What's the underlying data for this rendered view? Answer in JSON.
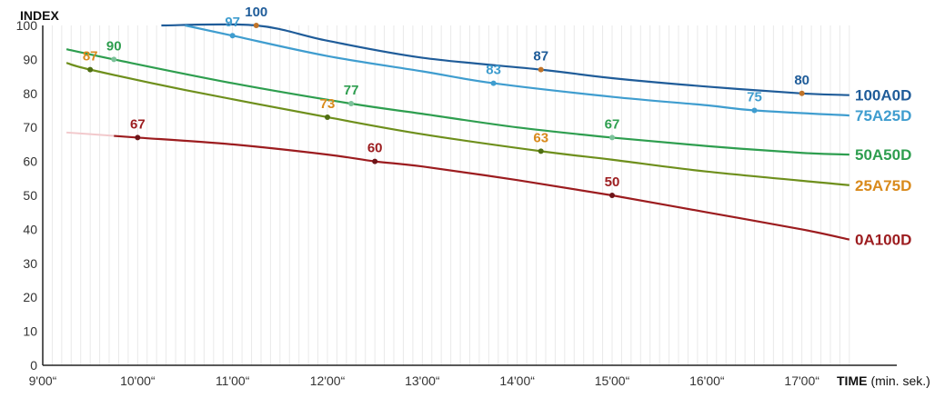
{
  "chart_data": {
    "type": "line",
    "ylabel": "INDEX",
    "xlabel": "TIME",
    "xlabel_unit": "(min. sek.)",
    "xlim": [
      9.0,
      17.5
    ],
    "ylim": [
      0,
      100
    ],
    "x_ticks": [
      9,
      10,
      11,
      12,
      13,
      14,
      15,
      16,
      17
    ],
    "x_tick_labels": [
      "9'00“",
      "10'00“",
      "11'00“",
      "12'00“",
      "13'00“",
      "14'00“",
      "15'00“",
      "16'00“",
      "17'00“"
    ],
    "y_ticks": [
      0,
      10,
      20,
      30,
      40,
      50,
      60,
      70,
      80,
      90,
      100
    ],
    "grid": "vertical",
    "legend": "labels at right end of each line",
    "series": [
      {
        "name": "100A0D",
        "color": "#1f5c99",
        "marker_color": "#c0742a",
        "x": [
          10.25,
          11.25,
          12.0,
          13.0,
          14.25,
          15.0,
          16.0,
          17.0,
          17.5
        ],
        "y": [
          100.0,
          100.0,
          95.5,
          90.5,
          87.0,
          84.5,
          82.0,
          80.0,
          79.5
        ],
        "points": [
          {
            "x": 11.25,
            "y": 100,
            "label": "100"
          },
          {
            "x": 14.25,
            "y": 87,
            "label": "87"
          },
          {
            "x": 17.0,
            "y": 80,
            "label": "80"
          }
        ]
      },
      {
        "name": "75A25D",
        "color": "#3f9dcf",
        "marker_color": "#3f9dcf",
        "x": [
          10.5,
          11.0,
          12.0,
          13.0,
          13.75,
          15.0,
          16.0,
          16.5,
          17.5
        ],
        "y": [
          100.0,
          97.0,
          91.0,
          86.5,
          83.0,
          79.0,
          76.5,
          75.0,
          73.5
        ],
        "points": [
          {
            "x": 11.0,
            "y": 97,
            "label": "97"
          },
          {
            "x": 13.75,
            "y": 83,
            "label": "83"
          },
          {
            "x": 16.5,
            "y": 75,
            "label": "75"
          }
        ]
      },
      {
        "name": "50A50D",
        "color": "#2e9e4f",
        "marker_color": "#7cc29a",
        "x": [
          9.25,
          9.75,
          11.0,
          12.25,
          13.0,
          14.0,
          15.0,
          16.0,
          17.0,
          17.5
        ],
        "y": [
          93.0,
          90.0,
          83.0,
          77.0,
          74.0,
          70.0,
          67.0,
          64.5,
          62.5,
          62.0
        ],
        "points": [
          {
            "x": 9.75,
            "y": 90,
            "label": "90"
          },
          {
            "x": 12.25,
            "y": 77,
            "label": "77"
          },
          {
            "x": 15.0,
            "y": 67,
            "label": "67"
          }
        ]
      },
      {
        "name": "25A75D",
        "color": "#6e8f1c",
        "marker_color": "#4f6e12",
        "x": [
          9.25,
          9.5,
          10.5,
          12.0,
          13.0,
          14.25,
          15.0,
          16.0,
          17.5
        ],
        "y": [
          89.0,
          87.0,
          81.0,
          73.0,
          68.0,
          63.0,
          60.5,
          57.0,
          53.0
        ],
        "points": [
          {
            "x": 9.5,
            "y": 87,
            "label": "87"
          },
          {
            "x": 12.0,
            "y": 73,
            "label": "73"
          },
          {
            "x": 14.25,
            "y": 63,
            "label": "63"
          }
        ]
      },
      {
        "name": "0A100D",
        "color": "#9c1c1f",
        "marker_color": "#6e1418",
        "faded_x": [
          9.25,
          9.75
        ],
        "faded_y": [
          68.5,
          67.5
        ],
        "x": [
          9.75,
          10.0,
          11.0,
          12.0,
          12.5,
          13.0,
          14.0,
          15.0,
          16.0,
          17.0,
          17.5
        ],
        "y": [
          67.5,
          67.0,
          65.0,
          62.0,
          60.0,
          58.5,
          54.5,
          50.0,
          45.0,
          40.0,
          37.0
        ],
        "points": [
          {
            "x": 10.0,
            "y": 67,
            "label": "67"
          },
          {
            "x": 12.5,
            "y": 60,
            "label": "60"
          },
          {
            "x": 15.0,
            "y": 50,
            "label": "50"
          }
        ]
      }
    ],
    "label_colors": {
      "100A0D": "#1f5c99",
      "75A25D": "#3f9dcf",
      "50A50D": "#2e9e4f",
      "25A75D": "#d98a1c",
      "0A100D": "#9c1c1f"
    },
    "point_label_colors": {
      "100A0D": [
        "#1f5c99",
        "#1f5c99",
        "#1f5c99"
      ],
      "75A25D": [
        "#3f9dcf",
        "#3f9dcf",
        "#3f9dcf"
      ],
      "50A50D": [
        "#2e9e4f",
        "#2e9e4f",
        "#2e9e4f"
      ],
      "25A75D": [
        "#d98a1c",
        "#d98a1c",
        "#d98a1c"
      ],
      "0A100D": [
        "#9c1c1f",
        "#9c1c1f",
        "#9c1c1f"
      ]
    }
  }
}
